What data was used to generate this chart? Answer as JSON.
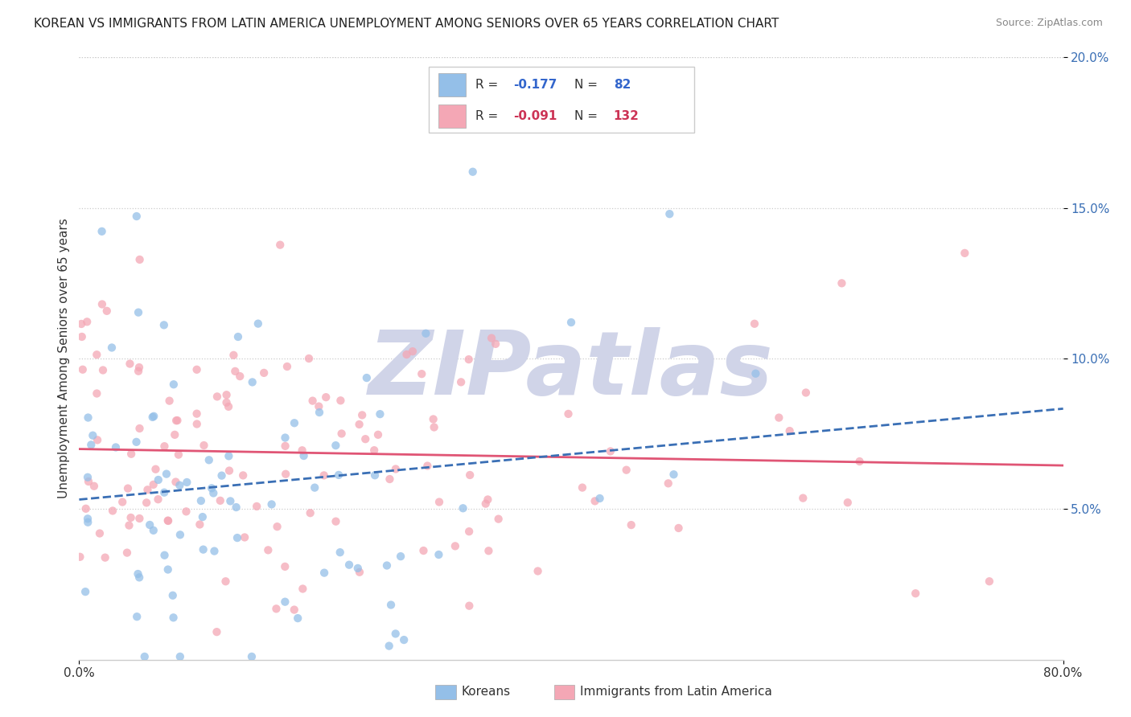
{
  "title": "KOREAN VS IMMIGRANTS FROM LATIN AMERICA UNEMPLOYMENT AMONG SENIORS OVER 65 YEARS CORRELATION CHART",
  "source": "Source: ZipAtlas.com",
  "ylabel": "Unemployment Among Seniors over 65 years",
  "xlim": [
    0.0,
    0.8
  ],
  "ylim": [
    0.0,
    0.2
  ],
  "ytick_vals": [
    0.05,
    0.1,
    0.15,
    0.2
  ],
  "ytick_labels": [
    "5.0%",
    "10.0%",
    "15.0%",
    "20.0%"
  ],
  "xtick_vals": [
    0.0,
    0.8
  ],
  "xtick_labels": [
    "0.0%",
    "80.0%"
  ],
  "korean_R": -0.177,
  "korean_N": 82,
  "latin_R": -0.091,
  "latin_N": 132,
  "korean_color": "#94bfe8",
  "latin_color": "#f4a7b5",
  "korean_line_color": "#3a6fb5",
  "latin_line_color": "#e05575",
  "korean_line_style": "--",
  "latin_line_style": "-",
  "watermark": "ZIPatlas",
  "watermark_color": "#d0d4e8",
  "background_color": "#ffffff",
  "seed": 7,
  "legend_R_color_korean": "#3366cc",
  "legend_R_color_latin": "#cc3355",
  "legend_N_color_korean": "#3366cc",
  "legend_N_color_latin": "#cc3355",
  "legend_text_color": "#333333",
  "title_fontsize": 11,
  "source_fontsize": 9,
  "tick_fontsize": 11,
  "ylabel_fontsize": 11,
  "legend_fontsize": 11,
  "watermark_fontsize": 80
}
